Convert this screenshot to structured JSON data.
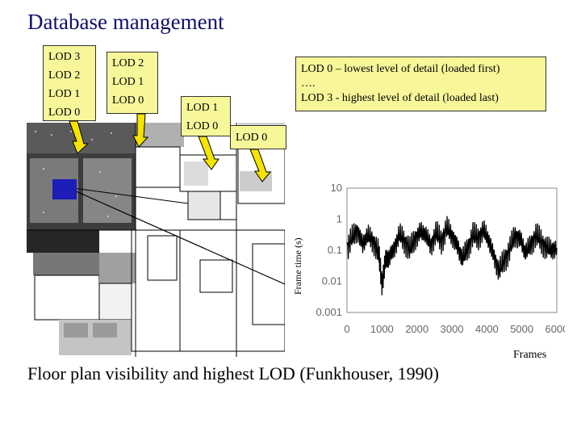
{
  "slide": {
    "title": "Database management",
    "caption": "Floor plan visibility and highest LOD (Funkhouser, 1990)"
  },
  "lod_boxes": {
    "box1": [
      "LOD 3",
      "LOD 2",
      "LOD 1",
      "LOD 0"
    ],
    "box2": [
      "LOD 2",
      "LOD 1",
      "LOD 0"
    ],
    "box3": [
      "LOD 1",
      "LOD 0"
    ],
    "box4": [
      "LOD 0"
    ]
  },
  "description": {
    "line1": "LOD 0 – lowest level of detail (loaded first)",
    "line2": "….",
    "line3": "LOD 3  - highest level of detail (loaded last)"
  },
  "colors": {
    "title": "#10106b",
    "callout_fill": "#f7f79a",
    "arrow_fill": "#f5e400",
    "viewer": "#1d1db8"
  },
  "chart_data": {
    "type": "line",
    "xlabel": "Frames",
    "ylabel": "Frame time (s)",
    "x_ticks": [
      "0",
      "1000",
      "2000",
      "3000",
      "4000",
      "5000",
      "6000"
    ],
    "y_ticks": [
      "10",
      "1",
      "0.1",
      "0.01",
      "0.001"
    ],
    "xlim": [
      0,
      6000
    ],
    "ylim": [
      0.001,
      10
    ],
    "y_scale": "log",
    "series": [
      {
        "x": [
          0,
          150,
          300,
          450,
          600,
          750,
          900,
          1000,
          1100,
          1200,
          1350,
          1500,
          1650,
          1800,
          1950,
          2100,
          2250,
          2400,
          2550,
          2700,
          2850,
          3000,
          3150,
          3300,
          3450,
          3600,
          3750,
          3900,
          4050,
          4200,
          4350,
          4500,
          4650,
          4800,
          4950,
          5100,
          5250,
          5400,
          5550,
          5700,
          5850,
          6000
        ],
        "y": [
          0.12,
          0.25,
          0.45,
          0.15,
          0.3,
          0.2,
          0.08,
          0.01,
          0.04,
          0.06,
          0.12,
          0.3,
          0.2,
          0.1,
          0.25,
          0.4,
          0.3,
          0.15,
          0.35,
          0.2,
          0.5,
          0.3,
          0.15,
          0.05,
          0.12,
          0.3,
          0.25,
          0.45,
          0.2,
          0.07,
          0.02,
          0.05,
          0.1,
          0.3,
          0.25,
          0.08,
          0.15,
          0.3,
          0.2,
          0.12,
          0.1,
          0.12
        ]
      }
    ]
  }
}
